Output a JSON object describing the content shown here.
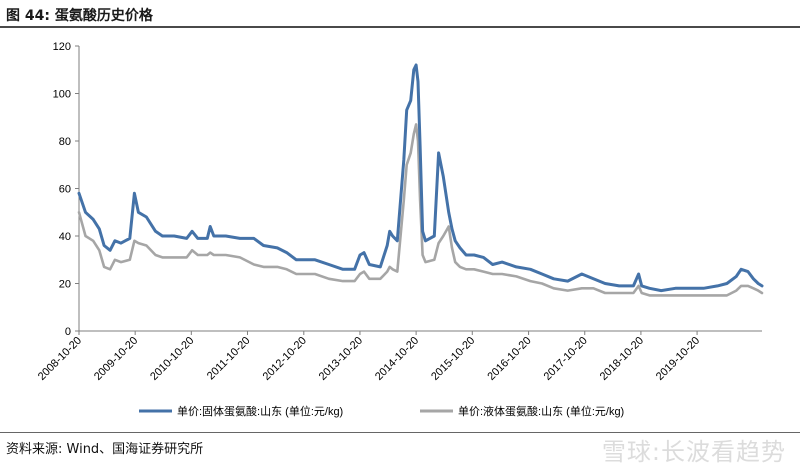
{
  "title": "图 44:  蛋氨酸历史价格",
  "source": "资料来源:  Wind、国海证券研究所",
  "watermark": "雪球:长波看趋势",
  "chart_data": {
    "type": "line",
    "title": "",
    "xlabel": "",
    "ylabel": "",
    "ylim": [
      0,
      120
    ],
    "yticks": [
      0,
      20,
      40,
      60,
      80,
      100,
      120
    ],
    "xlim": [
      "2008-10-20",
      "2020-12-15"
    ],
    "xticks": [
      "2008-10-20",
      "2009-10-20",
      "2010-10-20",
      "2011-10-20",
      "2012-10-20",
      "2013-10-20",
      "2014-10-20",
      "2015-10-20",
      "2016-10-20",
      "2017-10-20",
      "2018-10-20",
      "2019-10-20"
    ],
    "grid": false,
    "legend_position": "bottom",
    "series": [
      {
        "name": "单价:固体蛋氨酸:山东 (单位:元/kg)",
        "color": "#4472a8",
        "points": [
          [
            "2008-10-20",
            58
          ],
          [
            "2008-12-01",
            50
          ],
          [
            "2009-01-20",
            47
          ],
          [
            "2009-03-01",
            43
          ],
          [
            "2009-04-01",
            36
          ],
          [
            "2009-05-10",
            34
          ],
          [
            "2009-06-10",
            38
          ],
          [
            "2009-07-20",
            37
          ],
          [
            "2009-09-15",
            39
          ],
          [
            "2009-10-15",
            58
          ],
          [
            "2009-11-10",
            50
          ],
          [
            "2010-01-01",
            48
          ],
          [
            "2010-03-01",
            42
          ],
          [
            "2010-04-15",
            40
          ],
          [
            "2010-07-01",
            40
          ],
          [
            "2010-09-20",
            39
          ],
          [
            "2010-10-25",
            42
          ],
          [
            "2010-12-01",
            39
          ],
          [
            "2011-02-01",
            39
          ],
          [
            "2011-02-20",
            44
          ],
          [
            "2011-03-15",
            40
          ],
          [
            "2011-06-01",
            40
          ],
          [
            "2011-09-01",
            39
          ],
          [
            "2011-12-01",
            39
          ],
          [
            "2012-02-01",
            36
          ],
          [
            "2012-05-01",
            35
          ],
          [
            "2012-07-01",
            33
          ],
          [
            "2012-09-01",
            30
          ],
          [
            "2013-01-01",
            30
          ],
          [
            "2013-04-01",
            28
          ],
          [
            "2013-07-01",
            26
          ],
          [
            "2013-09-15",
            26
          ],
          [
            "2013-10-20",
            32
          ],
          [
            "2013-11-15",
            33
          ],
          [
            "2013-12-20",
            28
          ],
          [
            "2014-03-01",
            27
          ],
          [
            "2014-04-15",
            36
          ],
          [
            "2014-05-01",
            42
          ],
          [
            "2014-05-20",
            40
          ],
          [
            "2014-06-20",
            38
          ],
          [
            "2014-08-01",
            72
          ],
          [
            "2014-08-20",
            93
          ],
          [
            "2014-09-15",
            97
          ],
          [
            "2014-10-05",
            110
          ],
          [
            "2014-10-20",
            112
          ],
          [
            "2014-11-01",
            105
          ],
          [
            "2014-11-15",
            78
          ],
          [
            "2014-12-01",
            42
          ],
          [
            "2014-12-20",
            38
          ],
          [
            "2015-02-15",
            40
          ],
          [
            "2015-03-15",
            75
          ],
          [
            "2015-04-15",
            65
          ],
          [
            "2015-05-20",
            50
          ],
          [
            "2015-06-10",
            43
          ],
          [
            "2015-07-01",
            38
          ],
          [
            "2015-08-01",
            35
          ],
          [
            "2015-09-10",
            32
          ],
          [
            "2015-11-01",
            32
          ],
          [
            "2016-01-01",
            31
          ],
          [
            "2016-03-01",
            28
          ],
          [
            "2016-05-01",
            29
          ],
          [
            "2016-08-01",
            27
          ],
          [
            "2016-11-01",
            26
          ],
          [
            "2017-01-15",
            24
          ],
          [
            "2017-04-01",
            22
          ],
          [
            "2017-07-01",
            21
          ],
          [
            "2017-10-01",
            24
          ],
          [
            "2017-12-15",
            22
          ],
          [
            "2018-03-01",
            20
          ],
          [
            "2018-06-01",
            19
          ],
          [
            "2018-09-01",
            19
          ],
          [
            "2018-10-05",
            24
          ],
          [
            "2018-10-25",
            19
          ],
          [
            "2018-12-15",
            18
          ],
          [
            "2019-03-01",
            17
          ],
          [
            "2019-06-01",
            18
          ],
          [
            "2019-09-01",
            18
          ],
          [
            "2019-12-01",
            18
          ],
          [
            "2020-03-01",
            19
          ],
          [
            "2020-05-01",
            20
          ],
          [
            "2020-07-01",
            23
          ],
          [
            "2020-08-01",
            26
          ],
          [
            "2020-09-15",
            25
          ],
          [
            "2020-10-20",
            22
          ],
          [
            "2020-11-20",
            20
          ],
          [
            "2020-12-15",
            19
          ]
        ]
      },
      {
        "name": "单价:液体蛋氨酸:山东 (单位:元/kg)",
        "color": "#a6a6a6",
        "points": [
          [
            "2008-10-20",
            50
          ],
          [
            "2008-12-01",
            40
          ],
          [
            "2009-01-20",
            38
          ],
          [
            "2009-03-01",
            34
          ],
          [
            "2009-04-01",
            27
          ],
          [
            "2009-05-10",
            26
          ],
          [
            "2009-06-10",
            30
          ],
          [
            "2009-07-20",
            29
          ],
          [
            "2009-09-15",
            30
          ],
          [
            "2009-10-15",
            38
          ],
          [
            "2009-11-10",
            37
          ],
          [
            "2010-01-01",
            36
          ],
          [
            "2010-03-01",
            32
          ],
          [
            "2010-04-15",
            31
          ],
          [
            "2010-07-01",
            31
          ],
          [
            "2010-09-20",
            31
          ],
          [
            "2010-10-25",
            34
          ],
          [
            "2010-12-01",
            32
          ],
          [
            "2011-02-01",
            32
          ],
          [
            "2011-02-20",
            33
          ],
          [
            "2011-03-15",
            32
          ],
          [
            "2011-06-01",
            32
          ],
          [
            "2011-09-01",
            31
          ],
          [
            "2011-12-01",
            28
          ],
          [
            "2012-02-01",
            27
          ],
          [
            "2012-05-01",
            27
          ],
          [
            "2012-07-01",
            26
          ],
          [
            "2012-09-01",
            24
          ],
          [
            "2013-01-01",
            24
          ],
          [
            "2013-04-01",
            22
          ],
          [
            "2013-07-01",
            21
          ],
          [
            "2013-09-15",
            21
          ],
          [
            "2013-10-20",
            24
          ],
          [
            "2013-11-15",
            25
          ],
          [
            "2013-12-20",
            22
          ],
          [
            "2014-03-01",
            22
          ],
          [
            "2014-04-15",
            25
          ],
          [
            "2014-05-01",
            27
          ],
          [
            "2014-05-20",
            26
          ],
          [
            "2014-06-20",
            25
          ],
          [
            "2014-08-01",
            55
          ],
          [
            "2014-08-20",
            70
          ],
          [
            "2014-09-15",
            75
          ],
          [
            "2014-10-05",
            83
          ],
          [
            "2014-10-20",
            87
          ],
          [
            "2014-11-01",
            80
          ],
          [
            "2014-11-15",
            55
          ],
          [
            "2014-12-01",
            32
          ],
          [
            "2014-12-20",
            29
          ],
          [
            "2015-02-15",
            30
          ],
          [
            "2015-03-15",
            37
          ],
          [
            "2015-04-15",
            40
          ],
          [
            "2015-05-20",
            44
          ],
          [
            "2015-06-10",
            35
          ],
          [
            "2015-07-01",
            29
          ],
          [
            "2015-08-01",
            27
          ],
          [
            "2015-09-10",
            26
          ],
          [
            "2015-11-01",
            26
          ],
          [
            "2016-01-01",
            25
          ],
          [
            "2016-03-01",
            24
          ],
          [
            "2016-05-01",
            24
          ],
          [
            "2016-08-01",
            23
          ],
          [
            "2016-11-01",
            21
          ],
          [
            "2017-01-15",
            20
          ],
          [
            "2017-04-01",
            18
          ],
          [
            "2017-07-01",
            17
          ],
          [
            "2017-10-01",
            18
          ],
          [
            "2017-12-15",
            18
          ],
          [
            "2018-03-01",
            16
          ],
          [
            "2018-06-01",
            16
          ],
          [
            "2018-09-01",
            16
          ],
          [
            "2018-10-05",
            19
          ],
          [
            "2018-10-25",
            16
          ],
          [
            "2018-12-15",
            15
          ],
          [
            "2019-03-01",
            15
          ],
          [
            "2019-06-01",
            15
          ],
          [
            "2019-09-01",
            15
          ],
          [
            "2019-12-01",
            15
          ],
          [
            "2020-03-01",
            15
          ],
          [
            "2020-05-01",
            15
          ],
          [
            "2020-07-01",
            17
          ],
          [
            "2020-08-01",
            19
          ],
          [
            "2020-09-15",
            19
          ],
          [
            "2020-10-20",
            18
          ],
          [
            "2020-11-20",
            17
          ],
          [
            "2020-12-15",
            16
          ]
        ]
      }
    ]
  }
}
